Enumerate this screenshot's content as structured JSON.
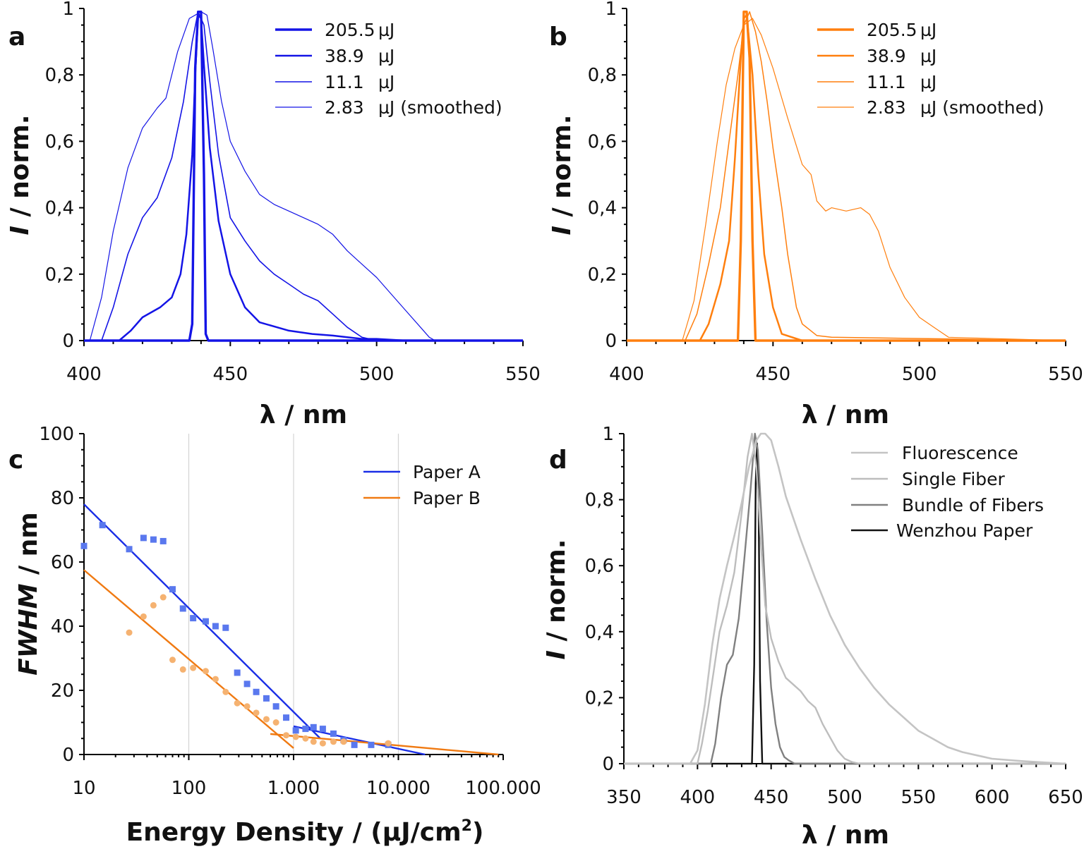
{
  "chart_data": [
    {
      "panel": "a",
      "type": "line",
      "xlabel": "λ / nm",
      "ylabel_italic": "I",
      "ylabel_rest": " / norm.",
      "xlim": [
        400,
        550
      ],
      "ylim": [
        0,
        1
      ],
      "xticks": [
        400,
        450,
        500,
        550
      ],
      "xtick_labels": [
        "400",
        "450",
        "500",
        "550"
      ],
      "yticks": [
        0,
        0.2,
        0.4,
        0.6,
        0.8,
        1
      ],
      "ytick_labels": [
        "0",
        "0,2",
        "0,4",
        "0,6",
        "0,8",
        "1"
      ],
      "legend_position": "top-right",
      "color": "#1414e6",
      "series": [
        {
          "name": "205.5 µJ",
          "legend_value": "205.5",
          "legend_unit": "µJ",
          "width": 3.4,
          "x": [
            400,
            436,
            437,
            438,
            439,
            440,
            441,
            441.6,
            442.5,
            550
          ],
          "y": [
            0,
            0,
            0.05,
            0.82,
            0.99,
            0.99,
            0.5,
            0.02,
            0,
            0
          ]
        },
        {
          "name": "38.9 µJ",
          "legend_value": "38.9",
          "legend_unit": "µJ",
          "width": 2.5,
          "x": [
            400,
            412,
            416,
            420,
            426,
            430,
            433,
            435,
            437,
            438,
            439,
            440,
            441,
            443,
            446,
            450,
            455,
            460,
            470,
            478,
            485,
            490,
            495,
            500,
            510,
            550
          ],
          "y": [
            0,
            0,
            0.03,
            0.07,
            0.1,
            0.13,
            0.2,
            0.32,
            0.56,
            0.8,
            0.98,
            0.97,
            0.83,
            0.58,
            0.36,
            0.2,
            0.1,
            0.055,
            0.03,
            0.02,
            0.015,
            0.01,
            0.005,
            0.005,
            0,
            0
          ]
        },
        {
          "name": "11.1 µJ",
          "legend_value": "11.1",
          "legend_unit": "µJ",
          "width": 1.6,
          "x": [
            400,
            406,
            410,
            415,
            420,
            425,
            430,
            434,
            437,
            439,
            441,
            443,
            446,
            450,
            455,
            460,
            465,
            470,
            475,
            480,
            485,
            490,
            495,
            500,
            510,
            550
          ],
          "y": [
            0,
            0,
            0.1,
            0.26,
            0.37,
            0.43,
            0.55,
            0.72,
            0.9,
            0.99,
            0.95,
            0.78,
            0.56,
            0.37,
            0.3,
            0.24,
            0.2,
            0.17,
            0.14,
            0.12,
            0.08,
            0.04,
            0.01,
            0,
            0,
            0
          ]
        },
        {
          "name": "2.83 µJ (smoothed)",
          "legend_value": "2.83",
          "legend_unit": "µJ (smoothed)",
          "width": 1.2,
          "x": [
            400,
            402,
            406,
            410,
            415,
            420,
            425,
            428,
            432,
            436,
            440,
            442,
            444,
            447,
            450,
            455,
            460,
            465,
            470,
            475,
            480,
            485,
            490,
            495,
            500,
            505,
            510,
            515,
            518,
            520,
            550
          ],
          "y": [
            0,
            0,
            0.13,
            0.33,
            0.52,
            0.64,
            0.7,
            0.73,
            0.87,
            0.97,
            0.99,
            0.98,
            0.88,
            0.72,
            0.6,
            0.51,
            0.44,
            0.41,
            0.39,
            0.37,
            0.35,
            0.32,
            0.27,
            0.23,
            0.19,
            0.14,
            0.09,
            0.04,
            0.01,
            0,
            0
          ]
        }
      ]
    },
    {
      "panel": "b",
      "type": "line",
      "xlabel": "λ / nm",
      "ylabel_italic": "I",
      "ylabel_rest": " / norm.",
      "xlim": [
        400,
        550
      ],
      "ylim": [
        0,
        1
      ],
      "xticks": [
        400,
        450,
        500,
        550
      ],
      "xtick_labels": [
        "400",
        "450",
        "500",
        "550"
      ],
      "yticks": [
        0,
        0.2,
        0.4,
        0.6,
        0.8,
        1
      ],
      "ytick_labels": [
        "0",
        "0,2",
        "0,4",
        "0,6",
        "0,8",
        "1"
      ],
      "legend_position": "top-right",
      "color": "#ff7f0e",
      "series": [
        {
          "name": "205.5 µJ",
          "legend_value": "205.5",
          "legend_unit": "µJ",
          "width": 3.4,
          "x": [
            400,
            438,
            439,
            440,
            441,
            442,
            443,
            444,
            550
          ],
          "y": [
            0,
            0,
            0.3,
            0.99,
            0.99,
            0.85,
            0.3,
            0,
            0
          ]
        },
        {
          "name": "38.9 µJ",
          "legend_value": "38.9",
          "legend_unit": "µJ",
          "width": 2.5,
          "x": [
            400,
            425,
            428,
            432,
            435,
            437,
            439,
            440,
            441,
            443,
            445,
            447,
            450,
            453,
            460,
            550
          ],
          "y": [
            0,
            0,
            0.05,
            0.17,
            0.3,
            0.55,
            0.85,
            0.97,
            0.98,
            0.8,
            0.5,
            0.26,
            0.1,
            0.02,
            0,
            0
          ]
        },
        {
          "name": "11.1 µJ",
          "legend_value": "11.1",
          "legend_unit": "µJ",
          "width": 1.5,
          "x": [
            400,
            420,
            424,
            428,
            432,
            435,
            438,
            440,
            442,
            444,
            446,
            448,
            450,
            453,
            455,
            458,
            460,
            465,
            470,
            550
          ],
          "y": [
            0,
            0,
            0.08,
            0.23,
            0.4,
            0.6,
            0.8,
            0.95,
            0.99,
            0.93,
            0.84,
            0.72,
            0.58,
            0.4,
            0.26,
            0.1,
            0.05,
            0.015,
            0.01,
            0
          ]
        },
        {
          "name": "2.83 µJ (smoothed)",
          "legend_value": "2.83",
          "legend_unit": "µJ (smoothed)",
          "width": 1.2,
          "x": [
            400,
            419,
            423,
            427,
            431,
            434,
            437,
            440,
            443,
            446,
            450,
            455,
            460,
            463,
            465,
            468,
            470,
            475,
            480,
            483,
            486,
            490,
            495,
            500,
            505,
            510,
            550
          ],
          "y": [
            0,
            0,
            0.12,
            0.35,
            0.6,
            0.77,
            0.88,
            0.95,
            0.97,
            0.92,
            0.82,
            0.67,
            0.53,
            0.5,
            0.42,
            0.39,
            0.4,
            0.39,
            0.4,
            0.38,
            0.33,
            0.22,
            0.13,
            0.07,
            0.04,
            0.01,
            0
          ]
        }
      ]
    },
    {
      "panel": "c",
      "type": "scatter",
      "xscale": "log",
      "xlabel": "Energy Density / (µJ/cm",
      "xlabel_sup": "2",
      "xlabel_end": ")",
      "ylabel_italic": "FWHM",
      "ylabel_rest": " / nm",
      "xlim": [
        10,
        100000
      ],
      "ylim": [
        0,
        100
      ],
      "xticks": [
        10,
        100,
        1000,
        10000,
        100000
      ],
      "xtick_labels": [
        "10",
        "100",
        "1.000",
        "10.000",
        "100.000"
      ],
      "yticks": [
        0,
        20,
        40,
        60,
        80,
        100
      ],
      "ytick_labels": [
        "0",
        "20",
        "40",
        "60",
        "80",
        "100"
      ],
      "grid_x": [
        100,
        1000,
        10000
      ],
      "legend_position": "top-right",
      "series": [
        {
          "name": "Paper A",
          "color": "#1a2ee6",
          "marker_color": "#5a78ee",
          "marker": "square",
          "points": [
            [
              10,
              65
            ],
            [
              15,
              71.5
            ],
            [
              27,
              64
            ],
            [
              37,
              67.5
            ],
            [
              46,
              67
            ],
            [
              57,
              66.5
            ],
            [
              70,
              51.5
            ],
            [
              88,
              45.5
            ],
            [
              110,
              42.5
            ],
            [
              145,
              41.5
            ],
            [
              180,
              40
            ],
            [
              225,
              39.5
            ],
            [
              290,
              25.5
            ],
            [
              360,
              22
            ],
            [
              440,
              19.5
            ],
            [
              550,
              17.5
            ],
            [
              680,
              15
            ],
            [
              850,
              11.5
            ],
            [
              1050,
              7.5
            ],
            [
              1300,
              8
            ],
            [
              1550,
              8.5
            ],
            [
              1900,
              8
            ],
            [
              2400,
              6.5
            ],
            [
              3000,
              4.5
            ],
            [
              3800,
              3
            ],
            [
              5500,
              3
            ],
            [
              8000,
              3
            ]
          ],
          "fit_lines": [
            [
              [
                10,
                78
              ],
              [
                1800,
                5
              ]
            ],
            [
              [
                1000,
                8.8
              ],
              [
                18000,
                0
              ]
            ]
          ]
        },
        {
          "name": "Paper B",
          "color": "#f07a12",
          "marker_color": "#f5b271",
          "marker": "circle",
          "points": [
            [
              27,
              38
            ],
            [
              37,
              43
            ],
            [
              46,
              46.5
            ],
            [
              57,
              49
            ],
            [
              70,
              29.5
            ],
            [
              88,
              26.5
            ],
            [
              110,
              27
            ],
            [
              145,
              26
            ],
            [
              180,
              23.5
            ],
            [
              225,
              19.5
            ],
            [
              290,
              16
            ],
            [
              360,
              15
            ],
            [
              440,
              13
            ],
            [
              550,
              11
            ],
            [
              680,
              10
            ],
            [
              850,
              6
            ],
            [
              1050,
              5.5
            ],
            [
              1300,
              5
            ],
            [
              1550,
              4
            ],
            [
              1900,
              3.5
            ],
            [
              2400,
              4
            ],
            [
              3000,
              4
            ],
            [
              8000,
              3.5
            ]
          ],
          "fit_lines": [
            [
              [
                10,
                57.5
              ],
              [
                1000,
                2
              ]
            ],
            [
              [
                600,
                6.4
              ],
              [
                90000,
                0
              ]
            ]
          ]
        }
      ]
    },
    {
      "panel": "d",
      "type": "line",
      "xlabel": "λ / nm",
      "ylabel_italic": "I",
      "ylabel_rest": " / norm.",
      "xlim": [
        350,
        650
      ],
      "ylim": [
        0,
        1
      ],
      "xticks": [
        350,
        400,
        450,
        500,
        550,
        600,
        650
      ],
      "xtick_labels": [
        "350",
        "400",
        "450",
        "500",
        "550",
        "600",
        "650"
      ],
      "yticks": [
        0,
        0.2,
        0.4,
        0.6,
        0.8,
        1
      ],
      "ytick_labels": [
        "0",
        "0,2",
        "0,4",
        "0,6",
        "0,8",
        "1"
      ],
      "legend_position": "top-right",
      "series": [
        {
          "name": "Fluorescence",
          "color": "#c4c4c4",
          "width": 2.6,
          "x": [
            350,
            395,
            400,
            405,
            410,
            415,
            420,
            425,
            430,
            435,
            440,
            443,
            446,
            450,
            455,
            460,
            470,
            480,
            490,
            500,
            510,
            520,
            530,
            540,
            550,
            560,
            570,
            580,
            590,
            600,
            620,
            650
          ],
          "y": [
            0,
            0,
            0.04,
            0.18,
            0.36,
            0.5,
            0.6,
            0.69,
            0.79,
            0.9,
            0.98,
            1,
            1,
            0.98,
            0.9,
            0.81,
            0.68,
            0.56,
            0.45,
            0.36,
            0.29,
            0.23,
            0.18,
            0.14,
            0.1,
            0.075,
            0.05,
            0.035,
            0.025,
            0.015,
            0.008,
            0
          ]
        },
        {
          "name": "Single Fiber",
          "color": "#bdbdbd",
          "width": 2.4,
          "x": [
            350,
            400,
            403,
            407,
            411,
            415,
            420,
            425,
            430,
            434,
            437,
            440,
            443,
            446,
            450,
            455,
            460,
            465,
            470,
            475,
            480,
            485,
            490,
            495,
            500,
            505,
            510,
            650
          ],
          "y": [
            0,
            0,
            0.06,
            0.16,
            0.28,
            0.4,
            0.48,
            0.58,
            0.76,
            0.93,
            1,
            0.9,
            0.67,
            0.48,
            0.38,
            0.31,
            0.26,
            0.24,
            0.22,
            0.19,
            0.17,
            0.12,
            0.08,
            0.04,
            0.015,
            0.005,
            0,
            0
          ]
        },
        {
          "name": "Bundle of Fibers",
          "color": "#808080",
          "width": 2.4,
          "x": [
            350,
            409,
            412,
            416,
            420,
            424,
            428,
            432,
            436,
            439,
            441,
            444,
            447,
            450,
            453,
            456,
            459,
            462,
            466,
            650
          ],
          "y": [
            0,
            0,
            0.06,
            0.2,
            0.3,
            0.33,
            0.44,
            0.63,
            0.83,
            1,
            0.95,
            0.7,
            0.43,
            0.23,
            0.12,
            0.05,
            0.02,
            0.01,
            0,
            0
          ]
        },
        {
          "name": "Wenzhou Paper",
          "color": "#111111",
          "width": 2.4,
          "x": [
            350,
            437,
            438.5,
            439.5,
            440.5,
            441.5,
            442.5,
            444,
            650
          ],
          "y": [
            0,
            0,
            0.3,
            0.85,
            0.97,
            0.8,
            0.25,
            0,
            0
          ]
        }
      ]
    }
  ]
}
